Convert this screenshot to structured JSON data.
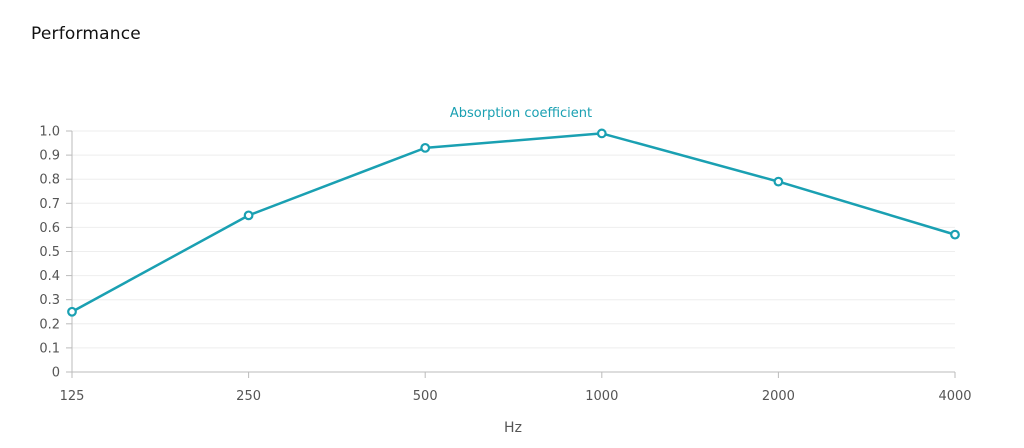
{
  "page": {
    "section_title": "Performance"
  },
  "colors": {
    "series": "#1aa0b2",
    "grid": "#eeeeee",
    "axis": "#bbbbbb"
  },
  "chart_data": {
    "type": "line",
    "title": "",
    "categories": [
      "125",
      "250",
      "500",
      "1000",
      "2000",
      "4000"
    ],
    "series": [
      {
        "name": "Absorption coefficient",
        "values": [
          0.25,
          0.65,
          0.93,
          0.99,
          0.79,
          0.57
        ]
      }
    ],
    "xlabel": "Hz",
    "ylabel": "",
    "ylim": [
      0,
      1.0
    ],
    "yticks": [
      "0",
      "0.1",
      "0.2",
      "0.3",
      "0.4",
      "0.5",
      "0.6",
      "0.7",
      "0.8",
      "0.9",
      "1.0"
    ],
    "grid": true,
    "legend_position": "top-center",
    "markers": "open-circle"
  }
}
